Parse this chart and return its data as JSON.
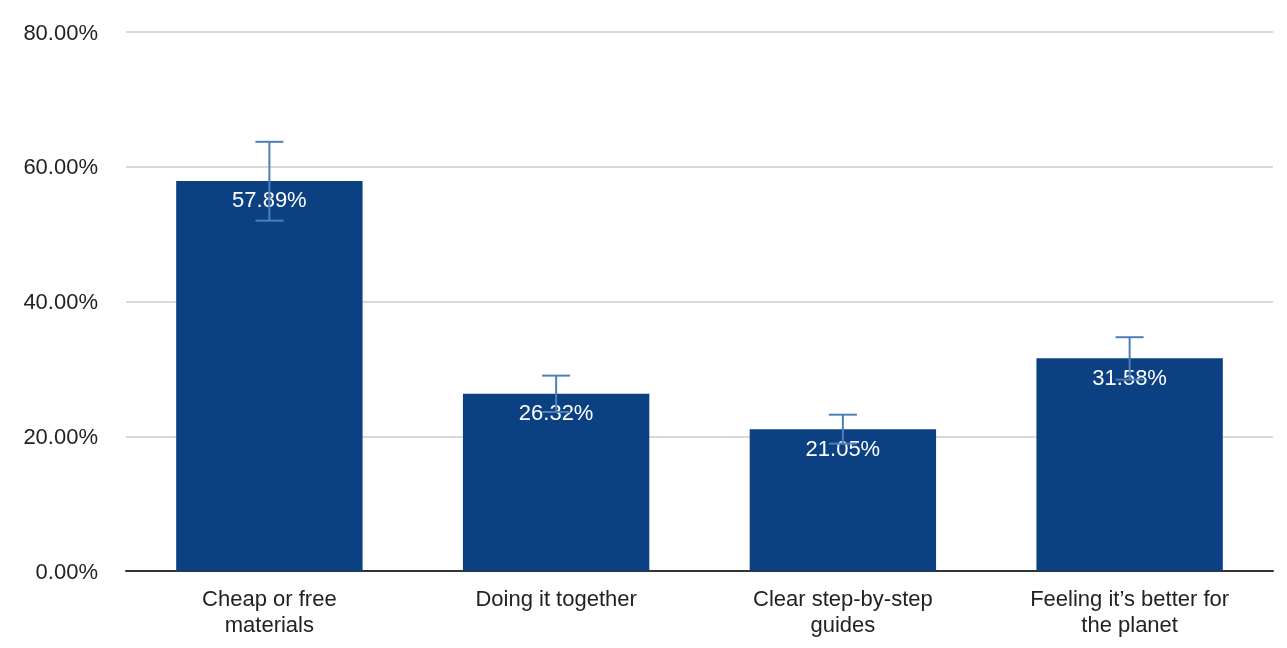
{
  "chart_data": {
    "type": "bar",
    "categories": [
      "Cheap or free\nmaterials",
      "Doing it together",
      "Clear step-by-step\nguides",
      "Feeling it’s better for\nthe planet"
    ],
    "values": [
      57.89,
      26.32,
      21.05,
      31.58
    ],
    "value_labels": [
      "57.89%",
      "26.32%",
      "21.05%",
      "31.58%"
    ],
    "errors": [
      [
        52.0,
        63.7
      ],
      [
        23.6,
        29.0
      ],
      [
        18.9,
        23.2
      ],
      [
        28.4,
        34.7
      ]
    ],
    "color": "#0b4082",
    "ylim": [
      0,
      80
    ],
    "yticks": [
      {
        "value": 0,
        "label": "0.00%"
      },
      {
        "value": 20,
        "label": "20.00%"
      },
      {
        "value": 40,
        "label": "40.00%"
      },
      {
        "value": 60,
        "label": "60.00%"
      },
      {
        "value": 80,
        "label": "80.00%"
      }
    ],
    "grid": "y"
  }
}
